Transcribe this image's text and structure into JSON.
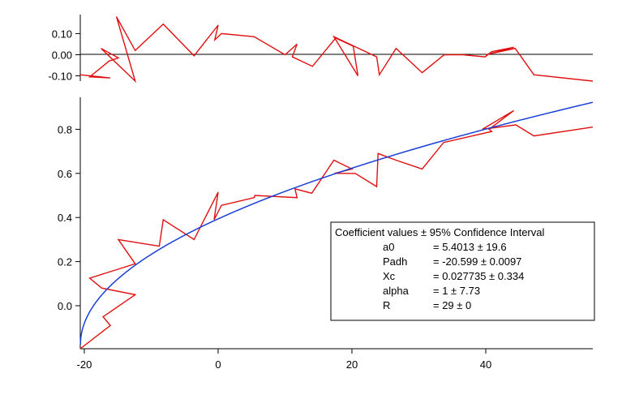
{
  "chart_data": [
    {
      "type": "line",
      "panel": "residuals",
      "xlim": [
        -20.6,
        56
      ],
      "ylim": [
        -0.125,
        0.19
      ],
      "yticks": [
        0.1,
        0.0,
        -0.1
      ],
      "ytick_labels": [
        "0.10",
        "0.00",
        "-0.10"
      ],
      "zero_line": true,
      "grid": false,
      "series": [
        {
          "color": "#e01010",
          "x": [
            -20.6,
            -16.1,
            -19.2,
            -16.3,
            -14.9,
            -17.5,
            -12.4,
            -15.2,
            -12.4,
            -8.2,
            -3.6,
            0,
            -0.5,
            0.5,
            5.4,
            10,
            11.8,
            11.1,
            14.1,
            17.6,
            17.5,
            20.2,
            20.9,
            17.3,
            23.7,
            24.1,
            26.6,
            30.5,
            33.8,
            36.6,
            39.9,
            40.9,
            44.2,
            40.0,
            44.4,
            47.2,
            56
          ],
          "y": [
            -0.095,
            -0.11,
            -0.105,
            -0.03,
            -0.015,
            0.03,
            -0.125,
            0.18,
            0.02,
            0.145,
            -0.005,
            0.14,
            0.07,
            0.1,
            0.085,
            0.0,
            0.05,
            -0.01,
            -0.055,
            0.08,
            0.08,
            0.04,
            -0.1,
            0.085,
            -0.01,
            -0.095,
            0.03,
            -0.085,
            0.0,
            0.0,
            -0.01,
            0.015,
            0.035,
            0.0,
            0.03,
            -0.095,
            -0.125
          ]
        }
      ]
    },
    {
      "type": "line",
      "panel": "main",
      "xlim": [
        -20.6,
        56
      ],
      "ylim": [
        -0.195,
        0.945
      ],
      "xticks": [
        -20,
        0,
        20,
        40
      ],
      "xtick_labels": [
        "-20",
        "0",
        "20",
        "40"
      ],
      "yticks": [
        0.0,
        0.2,
        0.4,
        0.6,
        0.8
      ],
      "ytick_labels": [
        "0.0",
        "0.2",
        "0.4",
        "0.6",
        "0.8"
      ],
      "grid": false,
      "series": [
        {
          "color": "#e01010",
          "x": [
            -20.6,
            -16.1,
            -17.2,
            -12.4,
            -17.4,
            -19.2,
            -12.4,
            -14.9,
            -8.8,
            -8.2,
            -3.6,
            0,
            -0.6,
            0.5,
            5.4,
            5.5,
            11.8,
            11.5,
            14.0,
            17.3,
            20.0,
            17.4,
            20.5,
            23.7,
            23.9,
            26.6,
            30.5,
            33.7,
            40.9,
            40.5,
            44.2,
            39.5,
            44.5,
            47.2,
            56
          ],
          "y": [
            -0.195,
            -0.09,
            -0.05,
            0.05,
            0.08,
            0.125,
            0.19,
            0.3,
            0.27,
            0.39,
            0.3,
            0.515,
            0.39,
            0.455,
            0.49,
            0.5,
            0.49,
            0.53,
            0.51,
            0.66,
            0.62,
            0.6,
            0.6,
            0.54,
            0.69,
            0.66,
            0.62,
            0.74,
            0.79,
            0.8,
            0.885,
            0.8,
            0.82,
            0.77,
            0.81
          ]
        },
        {
          "color": "#1a3fd6",
          "fit": "power",
          "x_start": -20.572,
          "x_end": 56,
          "y_offset": -0.175,
          "coef": 0.1254,
          "exponent": 0.5
        }
      ]
    }
  ],
  "legend": {
    "title": "Coefficient values ± 95% Confidence Interval",
    "rows": [
      {
        "name": "a0",
        "value": "= 5.4013 ± 19.6"
      },
      {
        "name": "Padh",
        "value": "= -20.599 ± 0.0097"
      },
      {
        "name": "Xc",
        "value": "= 0.027735 ± 0.334"
      },
      {
        "name": "alpha",
        "value": "= 1 ± 7.73"
      },
      {
        "name": "R",
        "value": "= 29 ± 0"
      }
    ]
  }
}
